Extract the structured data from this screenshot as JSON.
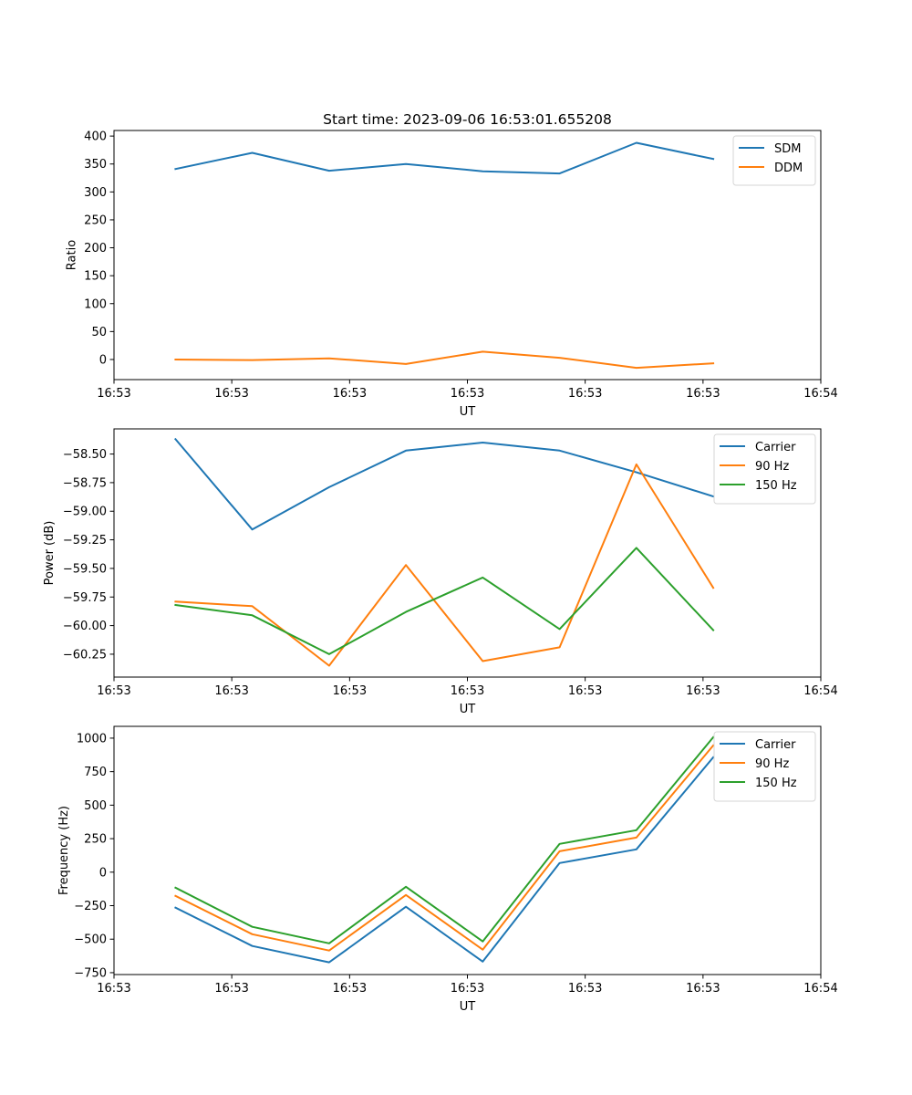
{
  "figure_title": "Start time: 2023-09-06 16:53:01.655208",
  "chart_data": [
    {
      "type": "line",
      "title": "Start time: 2023-09-06 16:53:01.655208",
      "xlabel": "UT",
      "ylabel": "Ratio",
      "x": [
        1,
        2,
        3,
        4,
        5,
        6,
        7,
        8
      ],
      "xlim": [
        0.2,
        9.4
      ],
      "xticks": [
        0.2,
        1.733,
        3.267,
        4.8,
        6.333,
        7.867,
        9.4
      ],
      "xtick_labels": [
        "16:53",
        "16:53",
        "16:53",
        "16:53",
        "16:53",
        "16:53",
        "16:54"
      ],
      "ylim": [
        -36,
        410
      ],
      "yticks": [
        0,
        50,
        100,
        150,
        200,
        250,
        300,
        350,
        400
      ],
      "ytick_labels": [
        "0",
        "50",
        "100",
        "150",
        "200",
        "250",
        "300",
        "350",
        "400"
      ],
      "legend_position": "top-right",
      "grid": false,
      "series": [
        {
          "name": "SDM",
          "color": "#1f77b4",
          "values": [
            341,
            370,
            338,
            350,
            337,
            333,
            388,
            359
          ]
        },
        {
          "name": "DDM",
          "color": "#ff7f0e",
          "values": [
            0,
            -1,
            2,
            -8,
            14,
            3,
            -15,
            -7
          ]
        }
      ]
    },
    {
      "type": "line",
      "title": "",
      "xlabel": "UT",
      "ylabel": "Power (dB)",
      "x": [
        1,
        2,
        3,
        4,
        5,
        6,
        7,
        8
      ],
      "xlim": [
        0.2,
        9.4
      ],
      "xticks": [
        0.2,
        1.733,
        3.267,
        4.8,
        6.333,
        7.867,
        9.4
      ],
      "xtick_labels": [
        "16:53",
        "16:53",
        "16:53",
        "16:53",
        "16:53",
        "16:53",
        "16:54"
      ],
      "ylim": [
        -60.45,
        -58.28
      ],
      "yticks": [
        -60.25,
        -60.0,
        -59.75,
        -59.5,
        -59.25,
        -59.0,
        -58.75,
        -58.5
      ],
      "ytick_labels": [
        "−60.25",
        "−60.00",
        "−59.75",
        "−59.50",
        "−59.25",
        "−59.00",
        "−58.75",
        "−58.50"
      ],
      "legend_position": "top-right",
      "grid": false,
      "series": [
        {
          "name": "Carrier",
          "color": "#1f77b4",
          "values": [
            -58.37,
            -59.16,
            -58.79,
            -58.47,
            -58.4,
            -58.47,
            -58.66,
            -58.87
          ]
        },
        {
          "name": "90 Hz",
          "color": "#ff7f0e",
          "values": [
            -59.79,
            -59.83,
            -60.35,
            -59.47,
            -60.31,
            -60.19,
            -58.59,
            -59.67
          ]
        },
        {
          "name": "150 Hz",
          "color": "#2ca02c",
          "values": [
            -59.82,
            -59.91,
            -60.25,
            -59.88,
            -59.58,
            -60.03,
            -59.32,
            -60.04
          ]
        }
      ]
    },
    {
      "type": "line",
      "title": "",
      "xlabel": "UT",
      "ylabel": "Frequency (Hz)",
      "x": [
        1,
        2,
        3,
        4,
        5,
        6,
        7,
        8
      ],
      "xlim": [
        0.2,
        9.4
      ],
      "xticks": [
        0.2,
        1.733,
        3.267,
        4.8,
        6.333,
        7.867,
        9.4
      ],
      "xtick_labels": [
        "16:53",
        "16:53",
        "16:53",
        "16:53",
        "16:53",
        "16:53",
        "16:54"
      ],
      "ylim": [
        -764,
        1088
      ],
      "yticks": [
        -750,
        -500,
        -250,
        0,
        250,
        500,
        750,
        1000
      ],
      "ytick_labels": [
        "−750",
        "−500",
        "−250",
        "0",
        "250",
        "500",
        "750",
        "1000"
      ],
      "legend_position": "top-right",
      "grid": false,
      "series": [
        {
          "name": "Carrier",
          "color": "#1f77b4",
          "values": [
            -265,
            -551,
            -673,
            -258,
            -667,
            68,
            170,
            857
          ]
        },
        {
          "name": "90 Hz",
          "color": "#ff7f0e",
          "values": [
            -177,
            -463,
            -585,
            -170,
            -578,
            156,
            258,
            946
          ]
        },
        {
          "name": "150 Hz",
          "color": "#2ca02c",
          "values": [
            -116,
            -408,
            -531,
            -109,
            -517,
            211,
            313,
            1007
          ]
        }
      ]
    }
  ]
}
